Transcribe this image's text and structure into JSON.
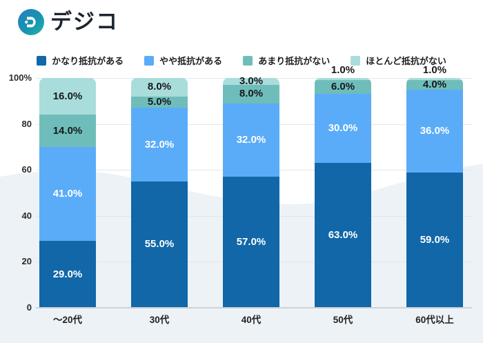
{
  "logo": {
    "text": "デジコ",
    "icon": "digico-d-icon"
  },
  "colors": {
    "background": "#ffffff",
    "wave": "#edf2f6",
    "gridline": "#e3e6e9",
    "axis_line": "#ccd2d8",
    "logo_gradient_start": "#2a7ec2",
    "logo_gradient_end": "#26b3a8"
  },
  "chart_data": {
    "type": "bar",
    "stacked": true,
    "title": "",
    "xlabel": "",
    "ylabel": "",
    "ylim": [
      0,
      100
    ],
    "grid": true,
    "legend_position": "top-center",
    "value_suffix": "%",
    "value_decimals": 1,
    "categories": [
      "～20代",
      "30代",
      "40代",
      "50代",
      "60代以上"
    ],
    "series": [
      {
        "name": "かなり抵抗がある",
        "color": "#1167a8",
        "label_color": "#ffffff",
        "values": [
          29,
          55,
          57,
          63,
          59
        ]
      },
      {
        "name": "やや抵抗がある",
        "color": "#5aacf8",
        "label_color": "#ffffff",
        "values": [
          41,
          32,
          32,
          30,
          36
        ]
      },
      {
        "name": "あまり抵抗がない",
        "color": "#6fbdbb",
        "label_color": "#17191b",
        "values": [
          14,
          5,
          8,
          6,
          4
        ]
      },
      {
        "name": "ほとんど抵抗がない",
        "color": "#a9dddb",
        "label_color": "#17191b",
        "values": [
          16,
          8,
          3,
          1,
          1
        ]
      }
    ],
    "y_axis": {
      "ticks": [
        {
          "value": 0,
          "label": "0"
        },
        {
          "value": 20,
          "label": "20"
        },
        {
          "value": 40,
          "label": "40"
        },
        {
          "value": 60,
          "label": "60"
        },
        {
          "value": 80,
          "label": "80"
        },
        {
          "value": 100,
          "label": "100%"
        }
      ]
    }
  }
}
